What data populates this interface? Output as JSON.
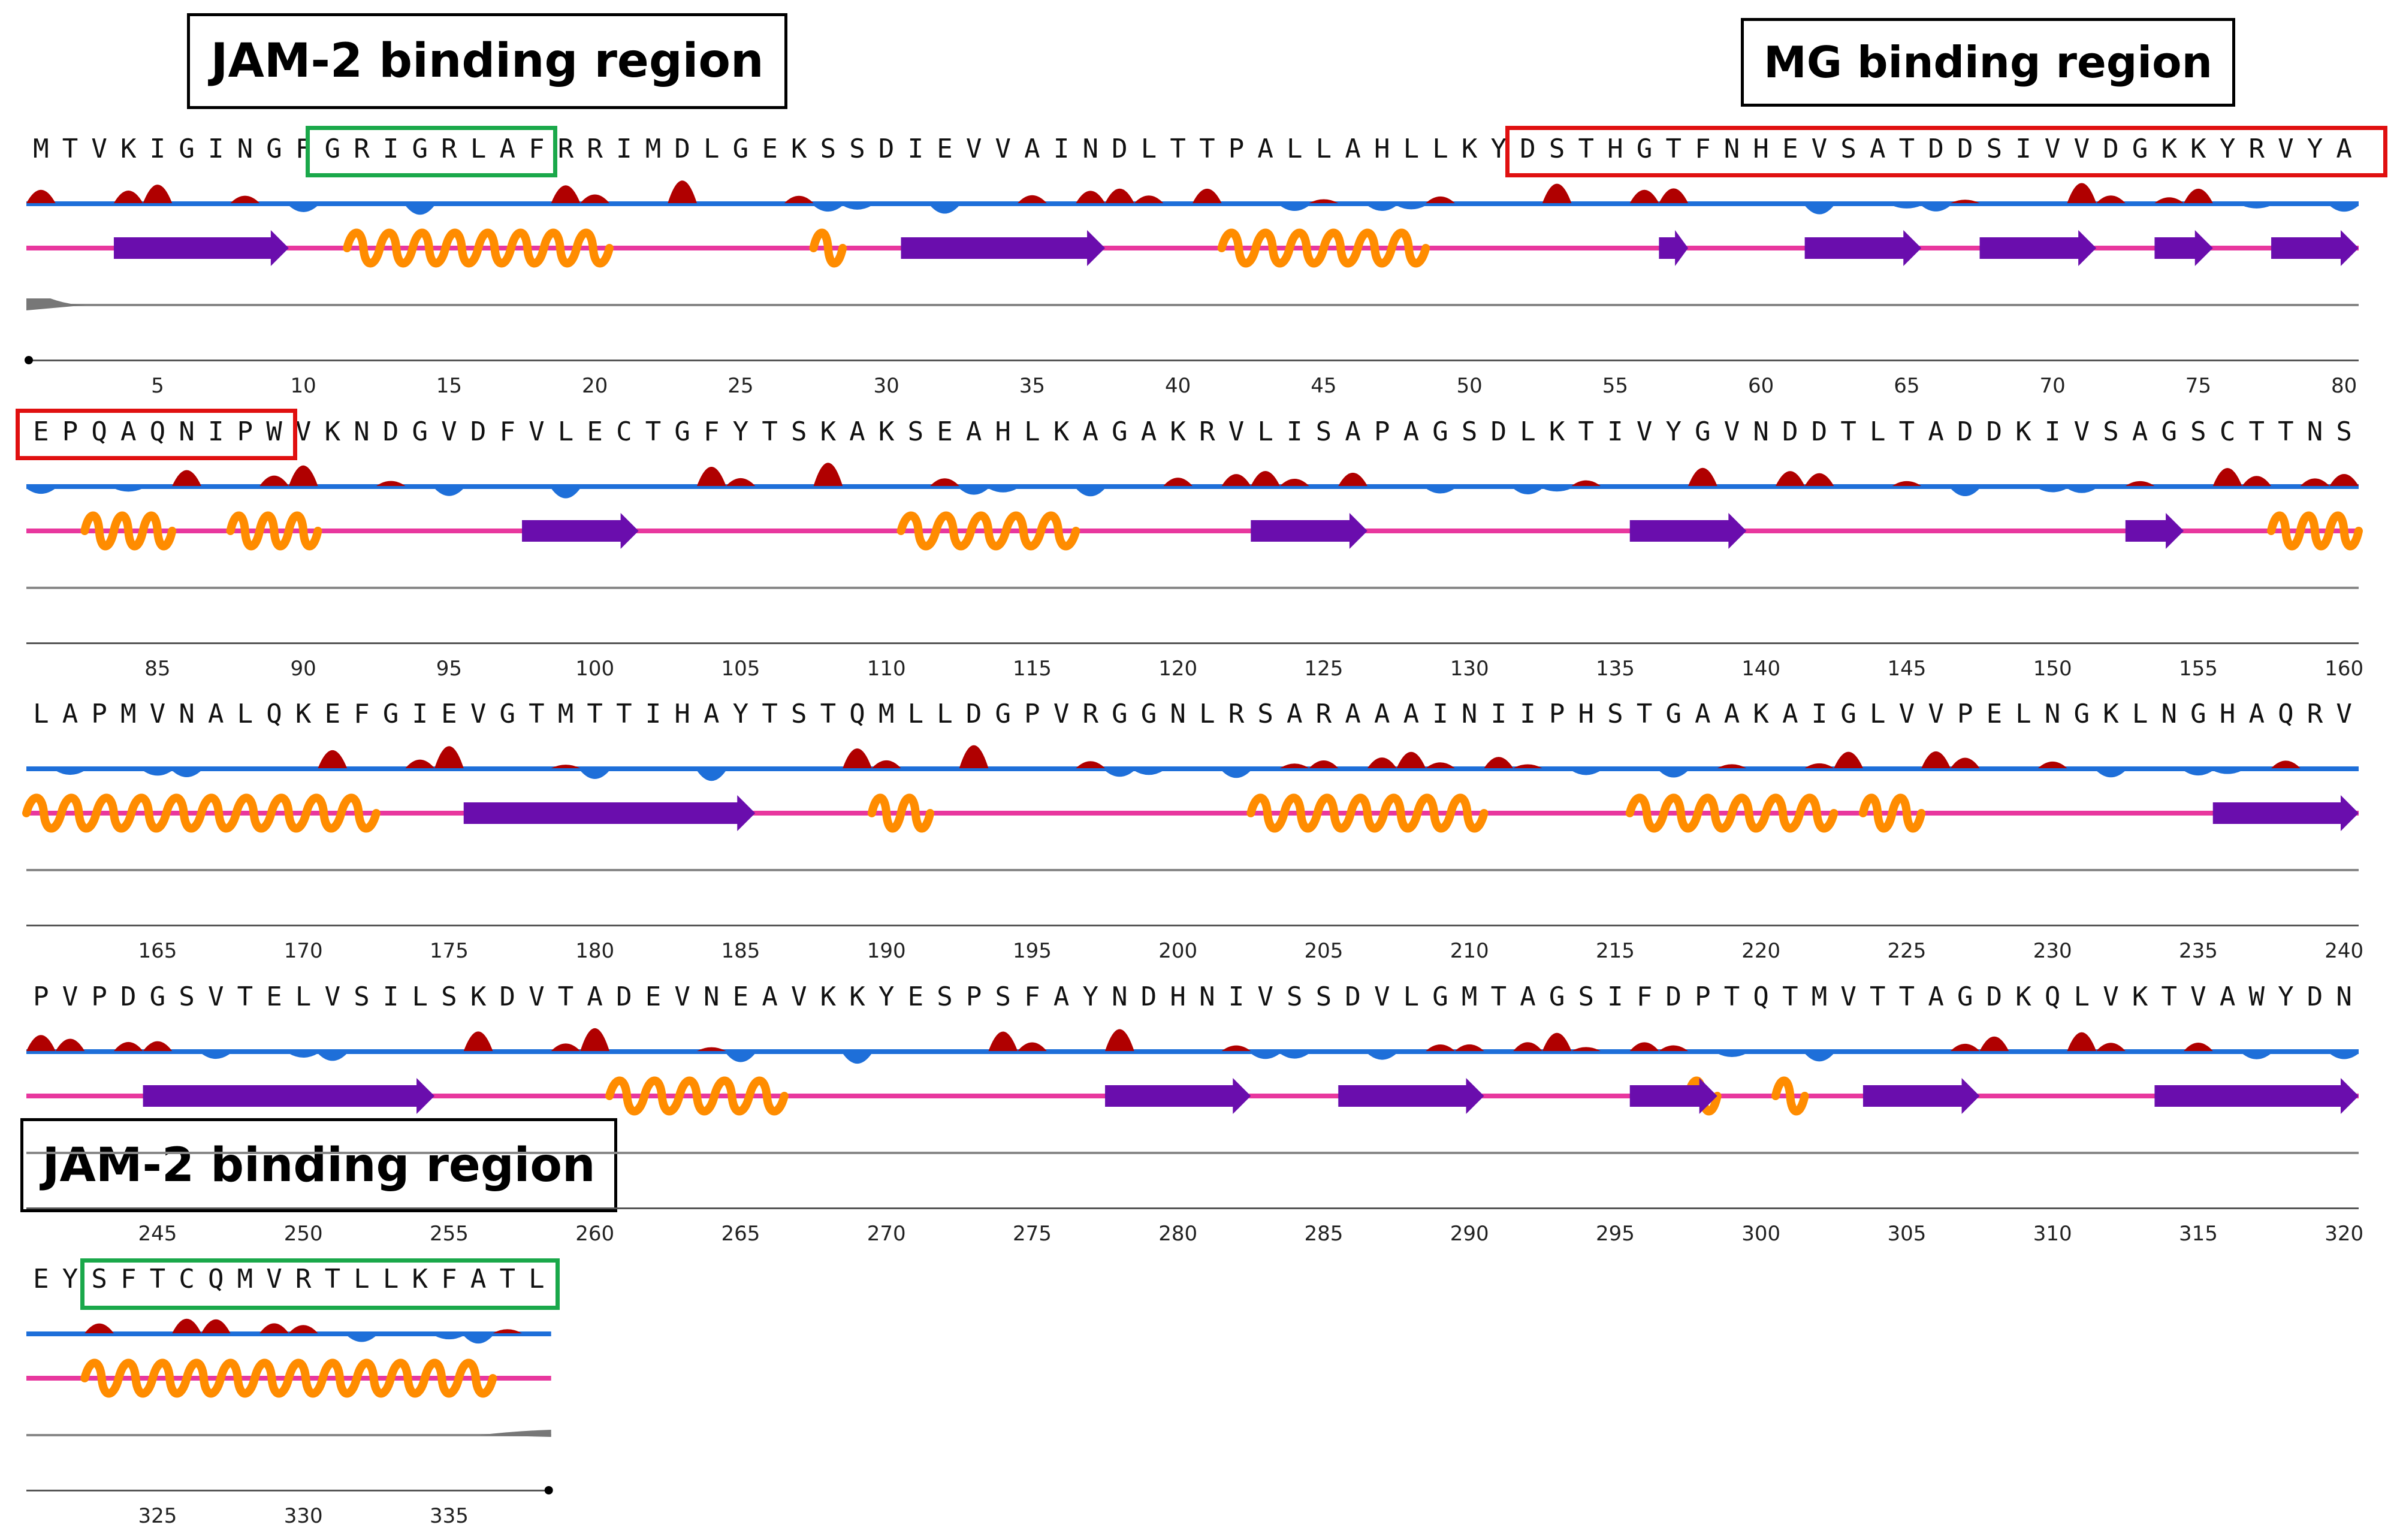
{
  "title_boxes": {
    "jam2_top": "JAM-2 binding region",
    "mg": "MG binding region",
    "jam2_bottom": "JAM-2 binding region"
  },
  "rows": [
    {
      "start": 1,
      "sequence": "MTVKIGINGFGRIGRLAFRRIMDLGEKSSDIEVVAINDLTTPALLAHLLKYDSTHGTFNHEVSATDDSIVVDGKKYRVYA",
      "ticks": [
        "5",
        "10",
        "15",
        "20",
        "25",
        "30",
        "35",
        "40",
        "45",
        "50",
        "55",
        "60",
        "65",
        "70",
        "75",
        "80"
      ]
    },
    {
      "start": 81,
      "sequence": "EPQAQNIPWVKNDGVDFVLECTGFYTSKAKSEAHLKAGAKRVLISAPAGSDLKTIVYGVNDDTLTADDKIVSAGSCTTNS",
      "ticks": [
        "85",
        "90",
        "95",
        "100",
        "105",
        "110",
        "115",
        "120",
        "125",
        "130",
        "135",
        "140",
        "145",
        "150",
        "155",
        "160"
      ]
    },
    {
      "start": 161,
      "sequence": "LAPMVNALQKEFGIEVGTMTTIHAYTSTQMLLDGPVRGGNLRSARAAAINIIPHSTGAAKAIGLVVPELNGKLNGHAQRV",
      "ticks": [
        "165",
        "170",
        "175",
        "180",
        "185",
        "190",
        "195",
        "200",
        "205",
        "210",
        "215",
        "220",
        "225",
        "230",
        "235",
        "240"
      ]
    },
    {
      "start": 241,
      "sequence": "PVPDGSVTELVSILSKDVTADEVNEAVKKYESPSFAYNDHNIVSSDVLGMTAGSIFDPTQTMVTTAGDKQLVKTVAWYDN",
      "ticks": [
        "245",
        "250",
        "255",
        "260",
        "265",
        "270",
        "275",
        "280",
        "285",
        "290",
        "295",
        "300",
        "305",
        "310",
        "315",
        "320"
      ]
    },
    {
      "start": 321,
      "sequence": "EYSFTCQMVRTLLKFATL",
      "ticks": [
        "325",
        "330",
        "335"
      ]
    }
  ],
  "secondary_structure": {
    "strands": [
      [
        4,
        9
      ],
      [
        31,
        37
      ],
      [
        57,
        57
      ],
      [
        62,
        65
      ],
      [
        68,
        71
      ],
      [
        74,
        75
      ],
      [
        78,
        80
      ],
      [
        98,
        101
      ],
      [
        123,
        126
      ],
      [
        136,
        139
      ],
      [
        153,
        154
      ],
      [
        176,
        185
      ],
      [
        236,
        240
      ],
      [
        245,
        254
      ],
      [
        278,
        282
      ],
      [
        286,
        290
      ],
      [
        296,
        298
      ],
      [
        304,
        307
      ],
      [
        314,
        320
      ]
    ],
    "helices": [
      [
        12,
        20
      ],
      [
        28,
        28
      ],
      [
        42,
        48
      ],
      [
        83,
        85
      ],
      [
        88,
        90
      ],
      [
        111,
        116
      ],
      [
        158,
        160
      ],
      [
        161,
        172
      ],
      [
        190,
        191
      ],
      [
        203,
        210
      ],
      [
        216,
        222
      ],
      [
        224,
        225
      ],
      [
        261,
        266
      ],
      [
        298,
        298
      ],
      [
        301,
        301
      ],
      [
        323,
        336
      ]
    ]
  },
  "colors": {
    "helix": "#ff8c00",
    "helix_light": "#ffc040",
    "strand": "#6a0dad",
    "coil": "#e8379e",
    "hydrophobic": "#b00000",
    "hydrophilic": "#1e6fd9",
    "green_box": "#1aa84a",
    "red_box": "#e01010"
  }
}
